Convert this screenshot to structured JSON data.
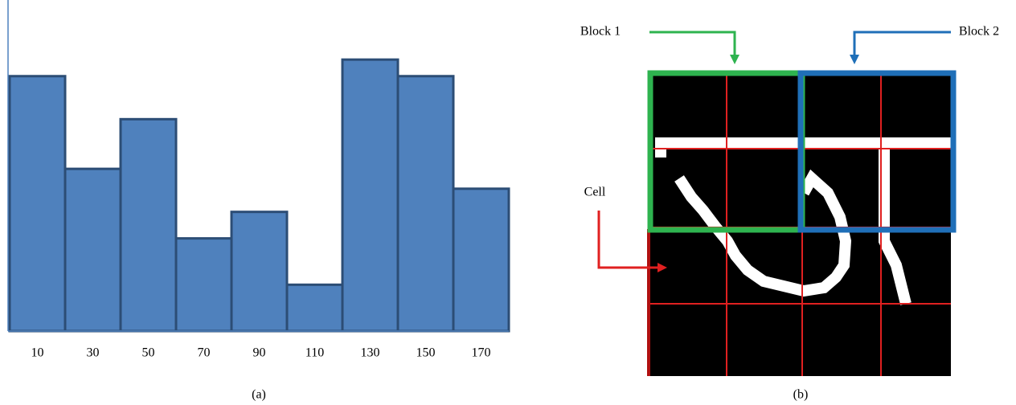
{
  "chart_data": {
    "type": "histogram",
    "caption": "(a)",
    "bins": [
      0,
      20,
      40,
      60,
      80,
      100,
      120,
      140,
      160,
      180
    ],
    "values": [
      77,
      49,
      64,
      28,
      36,
      14,
      82,
      77,
      43
    ],
    "color": "#4f81bd",
    "xlim": [
      0,
      180
    ],
    "ylim": [
      0,
      100
    ],
    "xticks": [
      10,
      30,
      50,
      70,
      90,
      110,
      130,
      150,
      170
    ]
  },
  "diagram": {
    "block_1": "Block 1",
    "block_2": "Block 2",
    "cell": "Cell",
    "caption": "(b)"
  }
}
